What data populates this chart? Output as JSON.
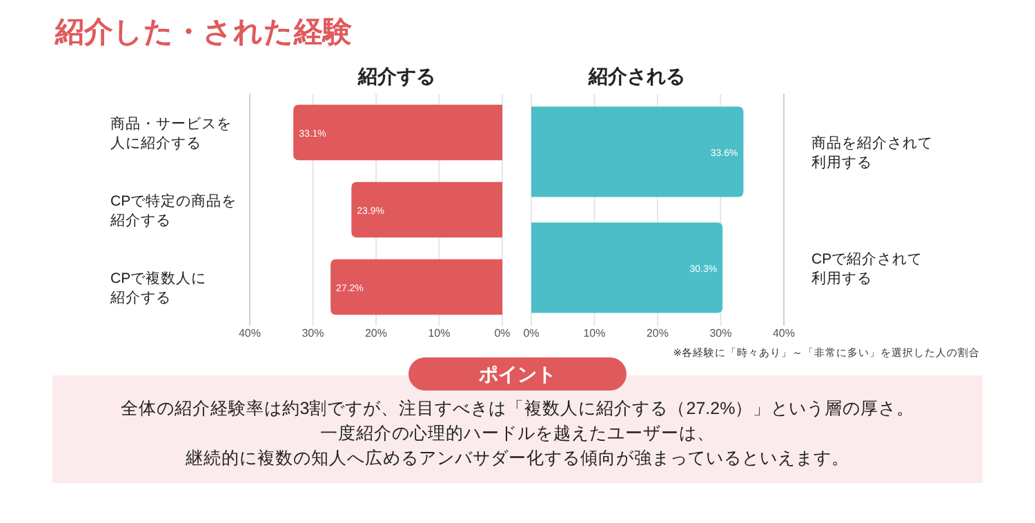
{
  "chart_data": [
    {
      "type": "bar",
      "orientation": "horizontal",
      "title": "紹介した・された経験",
      "subtitle": "紹介する",
      "categories": [
        "商品・サービスを人に紹介する",
        "CPで特定の商品を紹介する",
        "CPで複数人に紹介する"
      ],
      "values": [
        33.1,
        23.9,
        27.2
      ],
      "value_labels": [
        "33.1%",
        "23.9%",
        "27.2%"
      ],
      "color": "#e05a5c",
      "xlim": [
        40,
        0
      ],
      "xticks": [
        {
          "value": 40,
          "label": "40%"
        },
        {
          "value": 30,
          "label": "30%"
        },
        {
          "value": 20,
          "label": "20%"
        },
        {
          "value": 10,
          "label": "10%"
        },
        {
          "value": 0,
          "label": "0%"
        }
      ],
      "grid": "x"
    },
    {
      "type": "bar",
      "orientation": "horizontal",
      "title": "紹介される",
      "categories": [
        "商品を紹介されて利用する",
        "CPで紹介されて利用する"
      ],
      "values": [
        33.6,
        30.3
      ],
      "value_labels": [
        "33.6%",
        "30.3%"
      ],
      "color": "#4bbec7",
      "xlim": [
        0,
        40
      ],
      "xticks": [
        {
          "value": 0,
          "label": "0%"
        },
        {
          "value": 10,
          "label": "10%"
        },
        {
          "value": 20,
          "label": "20%"
        },
        {
          "value": 30,
          "label": "30%"
        },
        {
          "value": 40,
          "label": "40%"
        }
      ],
      "grid": "x",
      "annotations": [
        "※各経験に「時々あり」～「非常に多い」を選択した人の割合",
        "ポイント",
        "全体の紹介経験率は約3割ですが、注目すべきは「複数人に紹介する（27.2%）」という層の厚さ。",
        "一度紹介の心理的ハードルを越えたユーザーは、",
        "継続的に複数の知人へ広めるアンバサダー化する傾向が強まっているといえます。"
      ]
    }
  ]
}
